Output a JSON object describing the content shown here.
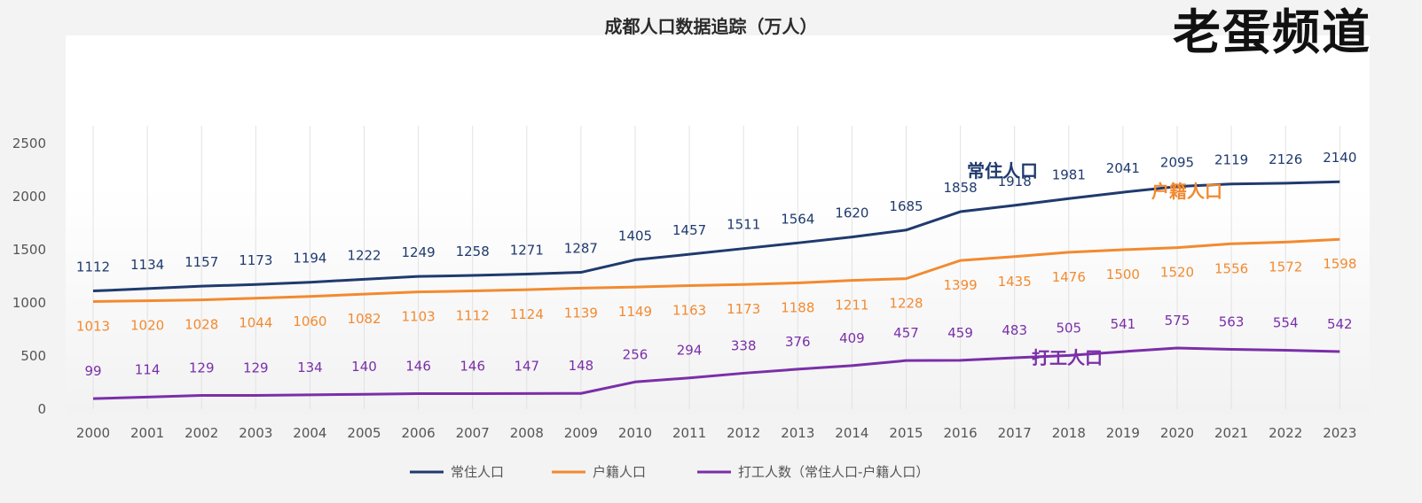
{
  "watermark": "老蛋频道",
  "chart_data": {
    "type": "line",
    "title": "成都人口数据追踪（万人）",
    "x": [
      2000,
      2001,
      2002,
      2003,
      2004,
      2005,
      2006,
      2007,
      2008,
      2009,
      2010,
      2011,
      2012,
      2013,
      2014,
      2015,
      2016,
      2017,
      2018,
      2019,
      2020,
      2021,
      2022,
      2023
    ],
    "ylim": [
      0,
      2500
    ],
    "yticks": [
      0,
      500,
      1000,
      1500,
      2000,
      2500
    ],
    "grid": "vertical",
    "legend_position": "bottom",
    "series": [
      {
        "name": "常住人口",
        "inline_label": "常住人口",
        "color": "#1f3a6e",
        "values": [
          1112,
          1134,
          1157,
          1173,
          1194,
          1222,
          1249,
          1258,
          1271,
          1287,
          1405,
          1457,
          1511,
          1564,
          1620,
          1685,
          1858,
          1918,
          1981,
          2041,
          2095,
          2119,
          2126,
          2140
        ]
      },
      {
        "name": "户籍人口",
        "inline_label": "户籍人口",
        "color": "#f28a30",
        "values": [
          1013,
          1020,
          1028,
          1044,
          1060,
          1082,
          1103,
          1112,
          1124,
          1139,
          1149,
          1163,
          1173,
          1188,
          1211,
          1228,
          1399,
          1435,
          1476,
          1500,
          1520,
          1556,
          1572,
          1598
        ]
      },
      {
        "name": "打工人数（常住人口-户籍人口）",
        "inline_label": "打工人口",
        "color": "#7a2fa8",
        "values": [
          99,
          114,
          129,
          129,
          134,
          140,
          146,
          146,
          147,
          148,
          256,
          294,
          338,
          376,
          409,
          457,
          459,
          483,
          505,
          541,
          575,
          563,
          554,
          542
        ]
      }
    ]
  }
}
